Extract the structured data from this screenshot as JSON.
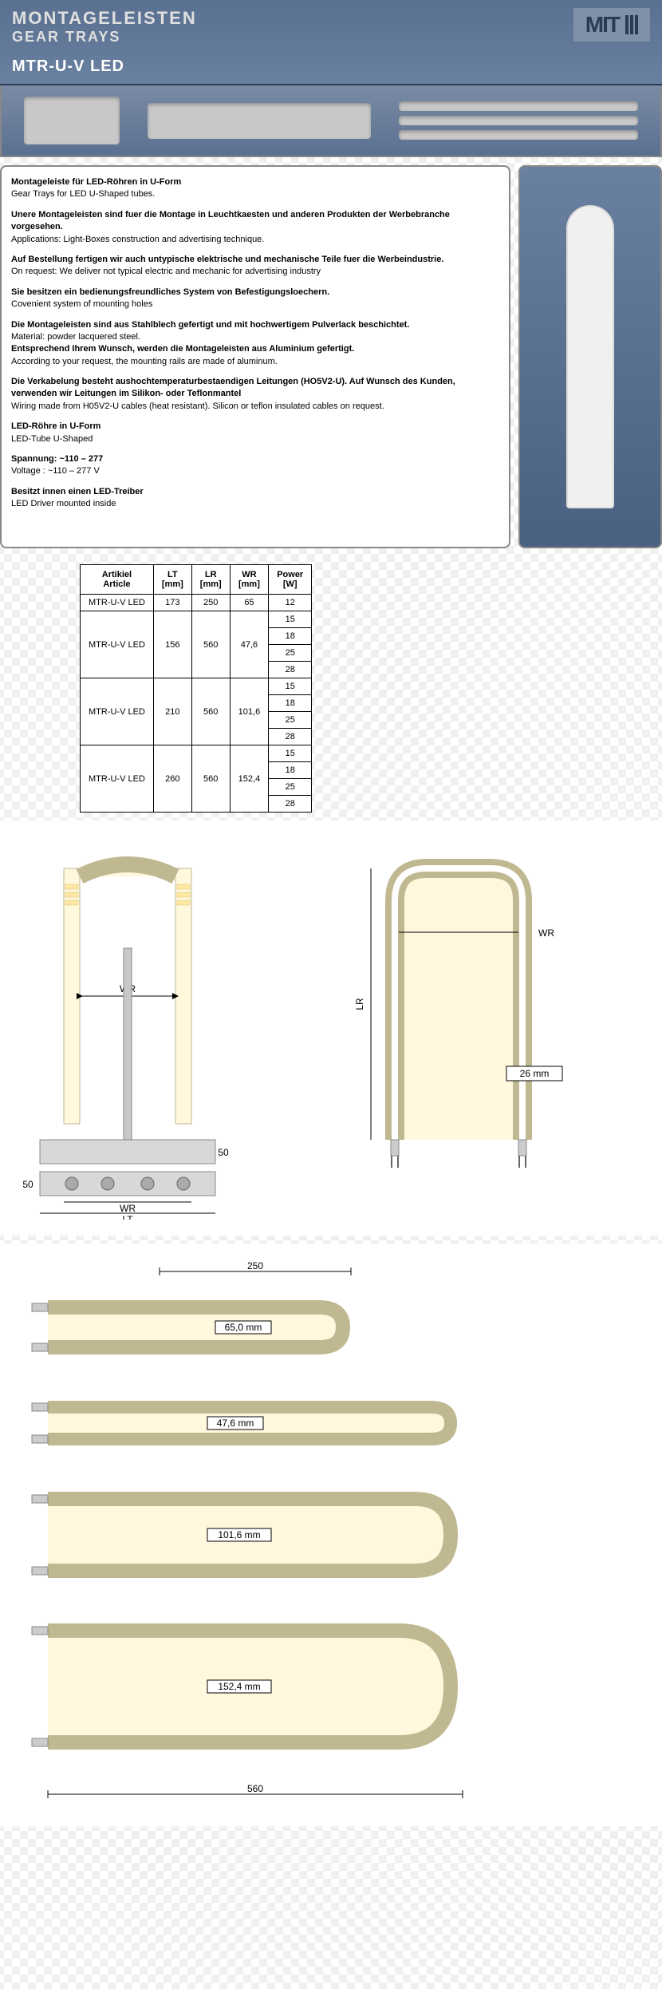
{
  "header": {
    "title": "MONTAGELEISTEN",
    "subtitle": "GEAR TRAYS",
    "model": "MTR-U-V LED",
    "logo": "MIT"
  },
  "description": {
    "title_de": "Montageleiste für LED-Röhren in U-Form",
    "title_en": "Gear Trays for LED U-Shaped tubes.",
    "p1_de": "Unere Montageleisten sind fuer die Montage in Leuchtkaesten und anderen Produkten der Werbebranche vorgesehen.",
    "p1_en": "Applications: Light-Boxes construction and advertising technique.",
    "p2_de": "Auf Bestellung fertigen wir auch untypische elektrische und mechanische Teile fuer die Werbeindustrie.",
    "p2_en": "On request: We deliver not typical electric and mechanic for advertising industry",
    "p3_de": "Sie besitzen ein bedienungsfreundliches System von Befestigungsloechern.",
    "p3_en": "Covenient system of mounting holes",
    "p4_de": "Die Montageleisten sind aus Stahlblech gefertigt und mit hochwertigem Pulverlack beschichtet.",
    "p4_en": "Material: powder lacquered steel.",
    "p5_de": "Entsprechend Ihrem Wunsch, werden die Montageleisten aus Aluminium gefertigt.",
    "p5_en": "According to your request, the mounting rails are made of aluminum.",
    "p6_de": "Die Verkabelung besteht aushochtemperaturbestaendigen Leitungen (HO5V2-U). Auf Wunsch des Kunden, verwenden wir Leitungen im Silikon- oder Teflonmantel",
    "p6_en": "Wiring made from H05V2-U cables (heat resistant). Silicon or teflon insulated cables on request.",
    "p7_de": "LED-Röhre in U-Form",
    "p7_en": "LED-Tube U-Shaped",
    "p8_de": "Spannung: ~110 – 277",
    "p8_en": "Voltage : ~110 – 277 V",
    "p9_de": "Besitzt innen einen LED-Treiber",
    "p9_en": "LED Driver mounted inside"
  },
  "table": {
    "headers": {
      "article_de": "Artikiel",
      "article_en": "Article",
      "lt": "LT",
      "lt_unit": "[mm]",
      "lr": "LR",
      "lr_unit": "[mm]",
      "wr": "WR",
      "wr_unit": "[mm]",
      "power": "Power",
      "power_unit": "[W]"
    },
    "rows": [
      {
        "article": "MTR-U-V LED",
        "lt": "173",
        "lr": "250",
        "wr": "65",
        "powers": [
          "12"
        ]
      },
      {
        "article": "MTR-U-V LED",
        "lt": "156",
        "lr": "560",
        "wr": "47,6",
        "powers": [
          "15",
          "18",
          "25",
          "28"
        ]
      },
      {
        "article": "MTR-U-V LED",
        "lt": "210",
        "lr": "560",
        "wr": "101,6",
        "powers": [
          "15",
          "18",
          "25",
          "28"
        ]
      },
      {
        "article": "MTR-U-V LED",
        "lt": "260",
        "lr": "560",
        "wr": "152,4",
        "powers": [
          "15",
          "18",
          "25",
          "28"
        ]
      }
    ]
  },
  "diagrams": {
    "left": {
      "wr_label": "WR",
      "lt_label": "LT",
      "bottom_50": "50",
      "side_50": "50"
    },
    "right": {
      "wr_label": "WR",
      "lr_label": "LR",
      "gap_26": "26 mm"
    },
    "variants": {
      "top_250": "250",
      "bottom_560": "560",
      "v1": "65,0 mm",
      "v2": "47,6 mm",
      "v3": "101,6 mm",
      "v4": "152,4 mm"
    }
  },
  "colors": {
    "header_bg": "#5a7090",
    "border": "#888888",
    "led_fill": "#fff8dd",
    "led_stroke": "#c0b890",
    "base_fill": "#d8d8d8"
  }
}
